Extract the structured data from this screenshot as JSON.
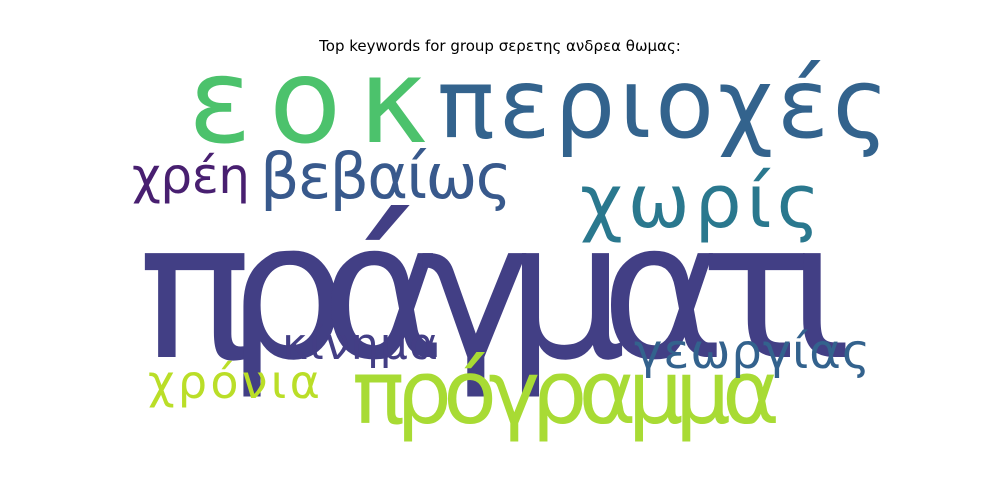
{
  "chart_data": {
    "type": "wordcloud",
    "title": "Top keywords for group σερετης ανδρεα θωμας:",
    "words": [
      {
        "text": "πράγματι",
        "weight": 1.0,
        "color": "#423f85"
      },
      {
        "text": "εοκ",
        "weight": 0.62,
        "color": "#4cc26c"
      },
      {
        "text": "περιοχές",
        "weight": 0.52,
        "color": "#33638d"
      },
      {
        "text": "πρόγραμμα",
        "weight": 0.48,
        "color": "#a8db34"
      },
      {
        "text": "χωρίς",
        "weight": 0.42,
        "color": "#2a788e"
      },
      {
        "text": "βεβαίως",
        "weight": 0.36,
        "color": "#38598c"
      },
      {
        "text": "γεωργίας",
        "weight": 0.28,
        "color": "#33628d"
      },
      {
        "text": "χρέη",
        "weight": 0.28,
        "color": "#481f70"
      },
      {
        "text": "κίνημα",
        "weight": 0.26,
        "color": "#433e85"
      },
      {
        "text": "χρόνια",
        "weight": 0.26,
        "color": "#bade28"
      }
    ]
  }
}
